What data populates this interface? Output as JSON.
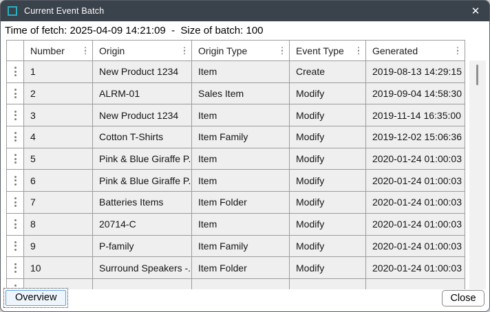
{
  "window": {
    "title": "Current Event Batch",
    "close_glyph": "✕"
  },
  "info_bar": {
    "text": "Time of fetch: 2025-04-09 14:21:09  -  Size of batch: 100"
  },
  "table": {
    "columns": [
      "Number",
      "Origin",
      "Origin Type",
      "Event Type",
      "Generated"
    ],
    "rows": [
      {
        "number": "1",
        "origin": "New Product 1234",
        "origin_type": "Item",
        "event_type": "Create",
        "generated": "2019-08-13 14:29:15"
      },
      {
        "number": "2",
        "origin": "ALRM-01",
        "origin_type": "Sales Item",
        "event_type": "Modify",
        "generated": "2019-09-04 14:58:30"
      },
      {
        "number": "3",
        "origin": "New Product 1234",
        "origin_type": "Item",
        "event_type": "Modify",
        "generated": "2019-11-14 16:35:00"
      },
      {
        "number": "4",
        "origin": "Cotton T-Shirts",
        "origin_type": "Item Family",
        "event_type": "Modify",
        "generated": "2019-12-02 15:06:36"
      },
      {
        "number": "5",
        "origin": "Pink & Blue Giraffe P...",
        "origin_type": "Item",
        "event_type": "Modify",
        "generated": "2020-01-24 01:00:03"
      },
      {
        "number": "6",
        "origin": "Pink & Blue Giraffe P...",
        "origin_type": "Item",
        "event_type": "Modify",
        "generated": "2020-01-24 01:00:03"
      },
      {
        "number": "7",
        "origin": "Batteries Items",
        "origin_type": "Item Folder",
        "event_type": "Modify",
        "generated": "2020-01-24 01:00:03"
      },
      {
        "number": "8",
        "origin": "20714-C",
        "origin_type": "Item",
        "event_type": "Modify",
        "generated": "2020-01-24 01:00:03"
      },
      {
        "number": "9",
        "origin": "P-family",
        "origin_type": "Item Family",
        "event_type": "Modify",
        "generated": "2020-01-24 01:00:03"
      },
      {
        "number": "10",
        "origin": "Surround Speakers -...",
        "origin_type": "Item Folder",
        "event_type": "Modify",
        "generated": "2020-01-24 01:00:03"
      }
    ],
    "partial_row_visible": true
  },
  "footer": {
    "overview_label": "Overview",
    "close_label": "Close"
  },
  "colors": {
    "titlebar_bg": "#3a424b",
    "accent_teal": "#28b0c0",
    "grid_border": "#9c9c9c",
    "cell_bg": "#efefef",
    "focus_border_blue": "#5a9fdd"
  }
}
